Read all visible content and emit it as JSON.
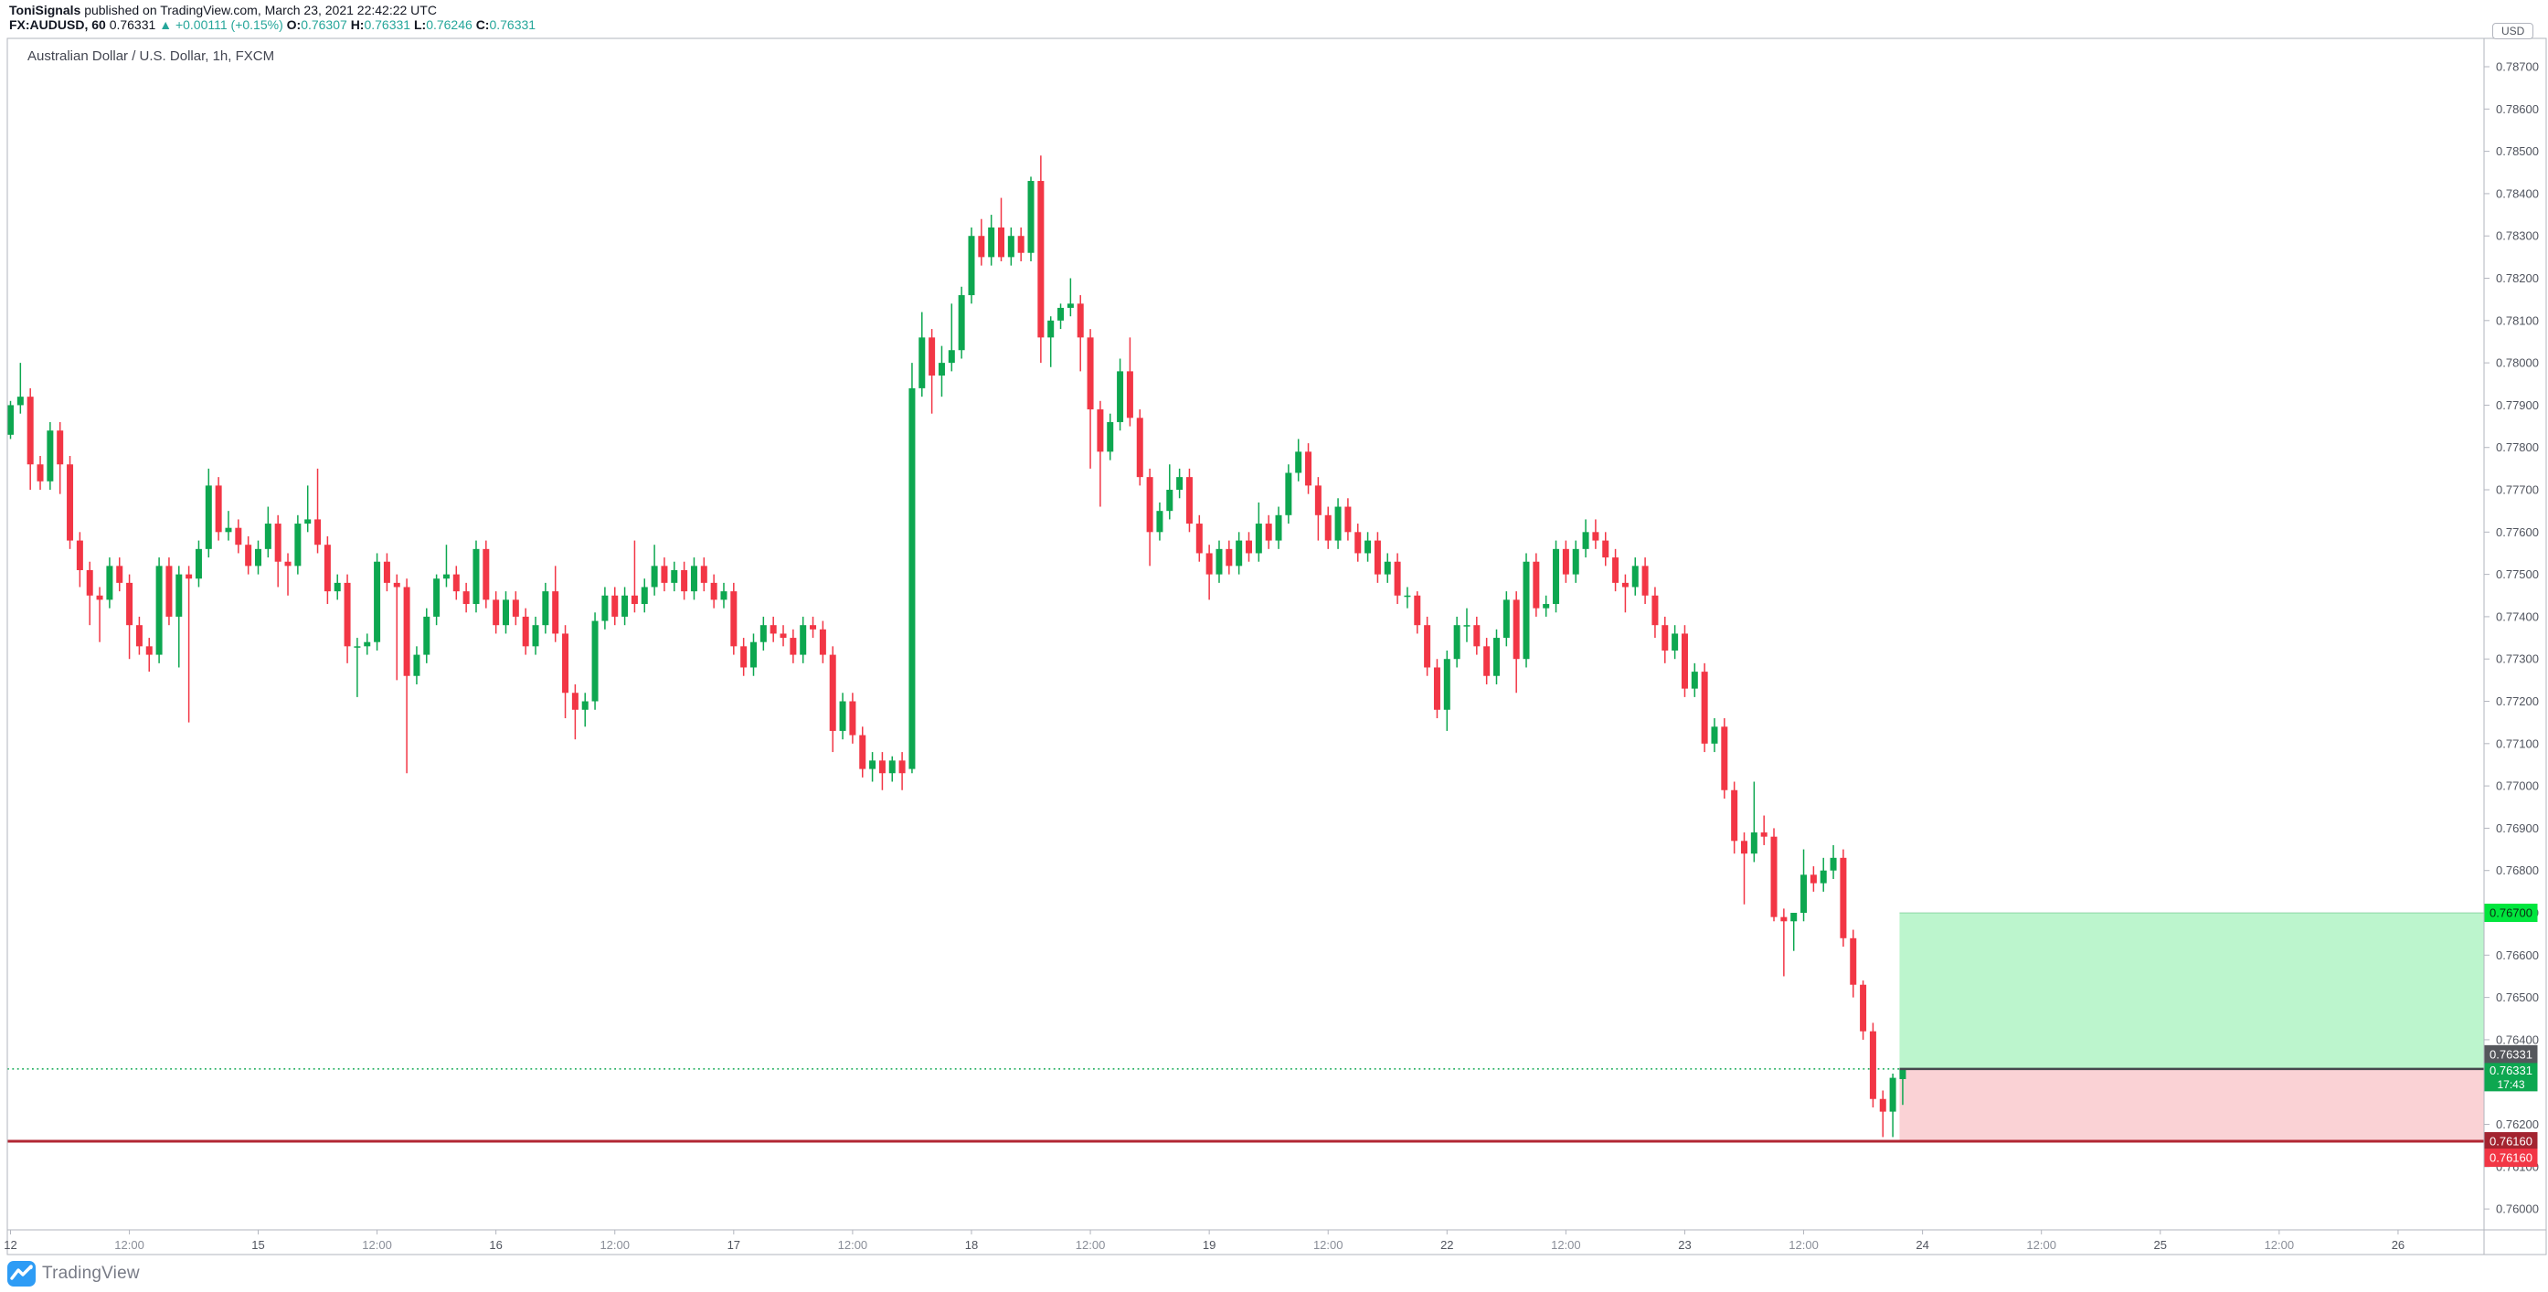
{
  "header": {
    "author": "ToniSignals",
    "published": " published on TradingView.com, March 23, 2021 22:42:22 UTC",
    "symbol_interval": "FX:AUDUSD, 60",
    "last_price": "0.76331",
    "change_arrow": "▲",
    "change": "+0.00111 (+0.15%)",
    "ohlc": [
      {
        "label": "O:",
        "value": "0.76307"
      },
      {
        "label": "H:",
        "value": "0.76331"
      },
      {
        "label": "L:",
        "value": "0.76246"
      },
      {
        "label": "C:",
        "value": "0.76331"
      }
    ]
  },
  "chart": {
    "title": "Australian Dollar / U.S. Dollar, 1h, FXCM",
    "currency_badge": "USD",
    "price_ticks": [
      "0.78700",
      "0.78600",
      "0.78500",
      "0.78400",
      "0.78300",
      "0.78200",
      "0.78100",
      "0.78000",
      "0.77900",
      "0.77800",
      "0.77700",
      "0.77600",
      "0.77500",
      "0.77400",
      "0.77300",
      "0.77200",
      "0.77100",
      "0.77000",
      "0.76900",
      "0.76800",
      "0.76700",
      "0.76600",
      "0.76500",
      "0.76400",
      "0.76200",
      "0.76100",
      "0.76000"
    ],
    "time_ticks": [
      [
        0,
        "12"
      ],
      [
        12,
        "12:00"
      ],
      [
        25,
        "15"
      ],
      [
        37,
        "12:00"
      ],
      [
        49,
        "16"
      ],
      [
        61,
        "12:00"
      ],
      [
        73,
        "17"
      ],
      [
        85,
        "12:00"
      ],
      [
        97,
        "18"
      ],
      [
        109,
        "12:00"
      ],
      [
        121,
        "19"
      ],
      [
        133,
        "12:00"
      ],
      [
        145,
        "22"
      ],
      [
        157,
        "12:00"
      ],
      [
        169,
        "23"
      ],
      [
        181,
        "12:00"
      ],
      [
        193,
        "24"
      ],
      [
        205,
        "12:00"
      ],
      [
        217,
        "25"
      ],
      [
        229,
        "12:00"
      ],
      [
        241,
        "26"
      ]
    ],
    "price_labels": [
      {
        "role": "target",
        "text": "0.76700",
        "bg": "#00E63D",
        "fg": "#0b2b12"
      },
      {
        "role": "entry",
        "text": "0.76331",
        "bg": "#55575C",
        "fg": "#ffffff"
      },
      {
        "role": "current",
        "text": "0.76331",
        "sub": "17:43",
        "bg": "#0DA750",
        "fg": "#ffffff"
      },
      {
        "role": "stop-line",
        "text": "0.76160",
        "bg": "#A32430",
        "fg": "#ffffff"
      },
      {
        "role": "stop",
        "text": "0.76160",
        "bg": "#F23645",
        "fg": "#ffffff"
      }
    ]
  },
  "position_tool": {
    "type": "long-position",
    "entry": 0.76331,
    "target": 0.767,
    "stop": 0.7616,
    "countdown": "17:43"
  },
  "watermark": {
    "text": "TradingView"
  },
  "colors": {
    "candle_up": "#0DA750",
    "candle_down": "#F23645",
    "profit_zone": "#BCF5CD",
    "loss_zone": "#FAD2D5",
    "stop_line": "#B22733",
    "entry_line_solid": "#45484D",
    "entry_line_dotted": "#0DA750",
    "border": "#B2B5BE",
    "axis_text": "#50545E",
    "hour_text": "#8A8E98",
    "header_up": "#26A69A",
    "logo_blue": "#2E9CF5"
  },
  "chart_data": {
    "type": "candlestick",
    "symbol": "FX:AUDUSD",
    "exchange": "FXCM",
    "interval": "1h",
    "ylim": [
      0.75951,
      0.78767
    ],
    "grid": false,
    "candles": [
      [
        0.7783,
        0.7791,
        0.7782,
        0.779
      ],
      [
        0.779,
        0.78,
        0.7788,
        0.7792
      ],
      [
        0.7792,
        0.7794,
        0.777,
        0.7776
      ],
      [
        0.7776,
        0.7778,
        0.777,
        0.7772
      ],
      [
        0.7772,
        0.7786,
        0.777,
        0.7784
      ],
      [
        0.7784,
        0.7786,
        0.7769,
        0.7776
      ],
      [
        0.7776,
        0.7778,
        0.7756,
        0.7758
      ],
      [
        0.7758,
        0.776,
        0.7747,
        0.7751
      ],
      [
        0.7751,
        0.7753,
        0.7738,
        0.7745
      ],
      [
        0.7745,
        0.7747,
        0.7734,
        0.7744
      ],
      [
        0.7744,
        0.7754,
        0.7742,
        0.7752
      ],
      [
        0.7752,
        0.7754,
        0.7746,
        0.7748
      ],
      [
        0.7748,
        0.775,
        0.773,
        0.7738
      ],
      [
        0.7738,
        0.774,
        0.7731,
        0.7733
      ],
      [
        0.7733,
        0.7735,
        0.7727,
        0.7731
      ],
      [
        0.7731,
        0.7754,
        0.7729,
        0.7752
      ],
      [
        0.7752,
        0.7754,
        0.7738,
        0.774
      ],
      [
        0.774,
        0.7752,
        0.7728,
        0.775
      ],
      [
        0.775,
        0.7752,
        0.7715,
        0.7749
      ],
      [
        0.7749,
        0.7758,
        0.7747,
        0.7756
      ],
      [
        0.7756,
        0.7775,
        0.7754,
        0.7771
      ],
      [
        0.7771,
        0.7773,
        0.7758,
        0.776
      ],
      [
        0.776,
        0.7765,
        0.7758,
        0.7761
      ],
      [
        0.7761,
        0.7763,
        0.7755,
        0.7757
      ],
      [
        0.7757,
        0.7759,
        0.775,
        0.7752
      ],
      [
        0.7752,
        0.7758,
        0.775,
        0.7756
      ],
      [
        0.7756,
        0.7766,
        0.7754,
        0.7762
      ],
      [
        0.7762,
        0.7764,
        0.7747,
        0.7753
      ],
      [
        0.7753,
        0.7755,
        0.7745,
        0.7752
      ],
      [
        0.7752,
        0.7764,
        0.775,
        0.7762
      ],
      [
        0.7762,
        0.7771,
        0.776,
        0.7763
      ],
      [
        0.7763,
        0.7775,
        0.7755,
        0.7757
      ],
      [
        0.7757,
        0.7759,
        0.7743,
        0.7746
      ],
      [
        0.7746,
        0.775,
        0.7744,
        0.7748
      ],
      [
        0.7748,
        0.775,
        0.7729,
        0.7733
      ],
      [
        0.7733,
        0.7735,
        0.7721,
        0.7733
      ],
      [
        0.7733,
        0.7736,
        0.7731,
        0.7734
      ],
      [
        0.7734,
        0.7755,
        0.7732,
        0.7753
      ],
      [
        0.7753,
        0.7755,
        0.7746,
        0.7748
      ],
      [
        0.7748,
        0.775,
        0.7725,
        0.7747
      ],
      [
        0.7747,
        0.7749,
        0.7703,
        0.7726
      ],
      [
        0.7726,
        0.7733,
        0.7724,
        0.7731
      ],
      [
        0.7731,
        0.7742,
        0.7729,
        0.774
      ],
      [
        0.774,
        0.775,
        0.7738,
        0.7749
      ],
      [
        0.7749,
        0.7757,
        0.7747,
        0.775
      ],
      [
        0.775,
        0.7752,
        0.7744,
        0.7746
      ],
      [
        0.7746,
        0.7748,
        0.7741,
        0.7743
      ],
      [
        0.7743,
        0.7758,
        0.7741,
        0.7756
      ],
      [
        0.7756,
        0.7758,
        0.7742,
        0.7744
      ],
      [
        0.7744,
        0.7746,
        0.7736,
        0.7738
      ],
      [
        0.7738,
        0.7746,
        0.7736,
        0.7744
      ],
      [
        0.7744,
        0.7746,
        0.7738,
        0.774
      ],
      [
        0.774,
        0.7742,
        0.7731,
        0.7733
      ],
      [
        0.7733,
        0.774,
        0.7731,
        0.7738
      ],
      [
        0.7738,
        0.7748,
        0.7736,
        0.7746
      ],
      [
        0.7746,
        0.7752,
        0.7734,
        0.7736
      ],
      [
        0.7736,
        0.7738,
        0.7716,
        0.7722
      ],
      [
        0.7722,
        0.7724,
        0.7711,
        0.7718
      ],
      [
        0.7718,
        0.7722,
        0.7714,
        0.772
      ],
      [
        0.772,
        0.7741,
        0.7718,
        0.7739
      ],
      [
        0.7739,
        0.7747,
        0.7737,
        0.7745
      ],
      [
        0.7745,
        0.7747,
        0.7738,
        0.774
      ],
      [
        0.774,
        0.7747,
        0.7738,
        0.7745
      ],
      [
        0.7745,
        0.7758,
        0.7741,
        0.7743
      ],
      [
        0.7743,
        0.7749,
        0.7741,
        0.7747
      ],
      [
        0.7747,
        0.7757,
        0.7745,
        0.7752
      ],
      [
        0.7752,
        0.7754,
        0.7746,
        0.7748
      ],
      [
        0.7748,
        0.7753,
        0.7746,
        0.7751
      ],
      [
        0.7751,
        0.7753,
        0.7744,
        0.7746
      ],
      [
        0.7746,
        0.7754,
        0.7744,
        0.7752
      ],
      [
        0.7752,
        0.7754,
        0.7746,
        0.7748
      ],
      [
        0.7748,
        0.775,
        0.7742,
        0.7744
      ],
      [
        0.7744,
        0.7748,
        0.7742,
        0.7746
      ],
      [
        0.7746,
        0.7748,
        0.7731,
        0.7733
      ],
      [
        0.7733,
        0.7735,
        0.7726,
        0.7728
      ],
      [
        0.7728,
        0.7736,
        0.7726,
        0.7734
      ],
      [
        0.7734,
        0.774,
        0.7732,
        0.7738
      ],
      [
        0.7738,
        0.774,
        0.7734,
        0.7736
      ],
      [
        0.7736,
        0.7738,
        0.7733,
        0.7735
      ],
      [
        0.7735,
        0.7737,
        0.7729,
        0.7731
      ],
      [
        0.7731,
        0.774,
        0.7729,
        0.7738
      ],
      [
        0.7738,
        0.774,
        0.7735,
        0.7737
      ],
      [
        0.7737,
        0.7739,
        0.7729,
        0.7731
      ],
      [
        0.7731,
        0.7733,
        0.7708,
        0.7713
      ],
      [
        0.7713,
        0.7722,
        0.7711,
        0.772
      ],
      [
        0.772,
        0.7722,
        0.771,
        0.7712
      ],
      [
        0.7712,
        0.7714,
        0.7702,
        0.7704
      ],
      [
        0.7704,
        0.7708,
        0.7701,
        0.7706
      ],
      [
        0.7706,
        0.7708,
        0.7699,
        0.7703
      ],
      [
        0.7703,
        0.7707,
        0.7701,
        0.7706
      ],
      [
        0.7706,
        0.7708,
        0.7699,
        0.7703
      ],
      [
        0.7704,
        0.78,
        0.7703,
        0.7794
      ],
      [
        0.7794,
        0.7812,
        0.7792,
        0.7806
      ],
      [
        0.7806,
        0.7808,
        0.7788,
        0.7797
      ],
      [
        0.7797,
        0.7804,
        0.7792,
        0.78
      ],
      [
        0.78,
        0.7814,
        0.7798,
        0.7803
      ],
      [
        0.7803,
        0.7818,
        0.7801,
        0.7816
      ],
      [
        0.7816,
        0.7832,
        0.7814,
        0.783
      ],
      [
        0.783,
        0.7834,
        0.7823,
        0.7825
      ],
      [
        0.7825,
        0.7835,
        0.7823,
        0.7832
      ],
      [
        0.7832,
        0.7839,
        0.7824,
        0.7825
      ],
      [
        0.7825,
        0.7832,
        0.7823,
        0.783
      ],
      [
        0.783,
        0.7832,
        0.7824,
        0.7826
      ],
      [
        0.7826,
        0.7844,
        0.7824,
        0.7843
      ],
      [
        0.7843,
        0.7849,
        0.78,
        0.7806
      ],
      [
        0.7806,
        0.7811,
        0.7799,
        0.781
      ],
      [
        0.781,
        0.7814,
        0.7808,
        0.7813
      ],
      [
        0.7813,
        0.782,
        0.7811,
        0.7814
      ],
      [
        0.7814,
        0.7816,
        0.7798,
        0.7806
      ],
      [
        0.7806,
        0.7808,
        0.7775,
        0.7789
      ],
      [
        0.7789,
        0.7791,
        0.7766,
        0.7779
      ],
      [
        0.7779,
        0.7788,
        0.7777,
        0.7786
      ],
      [
        0.7786,
        0.7801,
        0.7784,
        0.7798
      ],
      [
        0.7798,
        0.7806,
        0.7785,
        0.7787
      ],
      [
        0.7787,
        0.7789,
        0.7771,
        0.7773
      ],
      [
        0.7773,
        0.7775,
        0.7752,
        0.776
      ],
      [
        0.776,
        0.7767,
        0.7758,
        0.7765
      ],
      [
        0.7765,
        0.7776,
        0.7763,
        0.777
      ],
      [
        0.777,
        0.7775,
        0.7768,
        0.7773
      ],
      [
        0.7773,
        0.7775,
        0.776,
        0.7762
      ],
      [
        0.7762,
        0.7764,
        0.7753,
        0.7755
      ],
      [
        0.7755,
        0.7757,
        0.7744,
        0.775
      ],
      [
        0.775,
        0.7758,
        0.7748,
        0.7756
      ],
      [
        0.7756,
        0.7758,
        0.775,
        0.7752
      ],
      [
        0.7752,
        0.776,
        0.775,
        0.7758
      ],
      [
        0.7758,
        0.776,
        0.7753,
        0.7755
      ],
      [
        0.7755,
        0.7767,
        0.7753,
        0.7762
      ],
      [
        0.7762,
        0.7764,
        0.7756,
        0.7758
      ],
      [
        0.7758,
        0.7766,
        0.7756,
        0.7764
      ],
      [
        0.7764,
        0.7776,
        0.7762,
        0.7774
      ],
      [
        0.7774,
        0.7782,
        0.7772,
        0.7779
      ],
      [
        0.7779,
        0.7781,
        0.7769,
        0.7771
      ],
      [
        0.7771,
        0.7773,
        0.7758,
        0.7764
      ],
      [
        0.7764,
        0.7766,
        0.7756,
        0.7758
      ],
      [
        0.7758,
        0.7768,
        0.7756,
        0.7766
      ],
      [
        0.7766,
        0.7768,
        0.7758,
        0.776
      ],
      [
        0.776,
        0.7762,
        0.7753,
        0.7755
      ],
      [
        0.7755,
        0.776,
        0.7753,
        0.7758
      ],
      [
        0.7758,
        0.776,
        0.7748,
        0.775
      ],
      [
        0.775,
        0.7755,
        0.7748,
        0.7753
      ],
      [
        0.7753,
        0.7755,
        0.7743,
        0.7745
      ],
      [
        0.7745,
        0.7747,
        0.7742,
        0.7745
      ],
      [
        0.7745,
        0.7746,
        0.7736,
        0.7738
      ],
      [
        0.7738,
        0.774,
        0.7726,
        0.7728
      ],
      [
        0.7728,
        0.773,
        0.7716,
        0.7718
      ],
      [
        0.7718,
        0.7732,
        0.7713,
        0.773
      ],
      [
        0.773,
        0.774,
        0.7728,
        0.7738
      ],
      [
        0.7738,
        0.7742,
        0.7734,
        0.7738
      ],
      [
        0.7738,
        0.774,
        0.7731,
        0.7733
      ],
      [
        0.7733,
        0.7735,
        0.7724,
        0.7726
      ],
      [
        0.7726,
        0.7737,
        0.7724,
        0.7735
      ],
      [
        0.7735,
        0.7746,
        0.7733,
        0.7744
      ],
      [
        0.7744,
        0.7746,
        0.7722,
        0.773
      ],
      [
        0.773,
        0.7755,
        0.7728,
        0.7753
      ],
      [
        0.7753,
        0.7755,
        0.774,
        0.7742
      ],
      [
        0.7742,
        0.7745,
        0.774,
        0.7743
      ],
      [
        0.7743,
        0.7758,
        0.7741,
        0.7756
      ],
      [
        0.7756,
        0.7758,
        0.7748,
        0.775
      ],
      [
        0.775,
        0.7758,
        0.7748,
        0.7756
      ],
      [
        0.7756,
        0.7763,
        0.7754,
        0.776
      ],
      [
        0.776,
        0.7763,
        0.7756,
        0.7758
      ],
      [
        0.7758,
        0.776,
        0.7752,
        0.7754
      ],
      [
        0.7754,
        0.7756,
        0.7746,
        0.7748
      ],
      [
        0.7748,
        0.775,
        0.7741,
        0.7747
      ],
      [
        0.7747,
        0.7754,
        0.7745,
        0.7752
      ],
      [
        0.7752,
        0.7754,
        0.7743,
        0.7745
      ],
      [
        0.7745,
        0.7747,
        0.7735,
        0.7738
      ],
      [
        0.7738,
        0.774,
        0.7729,
        0.7732
      ],
      [
        0.7732,
        0.7738,
        0.773,
        0.7736
      ],
      [
        0.7736,
        0.7738,
        0.7721,
        0.7723
      ],
      [
        0.7723,
        0.7729,
        0.7721,
        0.7727
      ],
      [
        0.7727,
        0.7729,
        0.7708,
        0.771
      ],
      [
        0.771,
        0.7716,
        0.7708,
        0.7714
      ],
      [
        0.7714,
        0.7716,
        0.7697,
        0.7699
      ],
      [
        0.7699,
        0.7701,
        0.7684,
        0.7687
      ],
      [
        0.7687,
        0.7689,
        0.7672,
        0.7684
      ],
      [
        0.7684,
        0.7701,
        0.7682,
        0.7689
      ],
      [
        0.7689,
        0.7693,
        0.7686,
        0.7688
      ],
      [
        0.7688,
        0.769,
        0.7668,
        0.7669
      ],
      [
        0.7669,
        0.7671,
        0.7655,
        0.7668
      ],
      [
        0.7668,
        0.767,
        0.7661,
        0.767
      ],
      [
        0.767,
        0.7685,
        0.7668,
        0.7679
      ],
      [
        0.7679,
        0.7681,
        0.7675,
        0.7677
      ],
      [
        0.7677,
        0.7683,
        0.7675,
        0.768
      ],
      [
        0.768,
        0.7686,
        0.7678,
        0.7683
      ],
      [
        0.7683,
        0.7685,
        0.7662,
        0.7664
      ],
      [
        0.7664,
        0.7666,
        0.765,
        0.7653
      ],
      [
        0.7653,
        0.7654,
        0.764,
        0.7642
      ],
      [
        0.7642,
        0.7644,
        0.7624,
        0.7626
      ],
      [
        0.7626,
        0.7628,
        0.7617,
        0.7623
      ],
      [
        0.7623,
        0.7632,
        0.7617,
        0.7631
      ],
      [
        0.76307,
        0.76331,
        0.76246,
        0.76331
      ]
    ]
  }
}
